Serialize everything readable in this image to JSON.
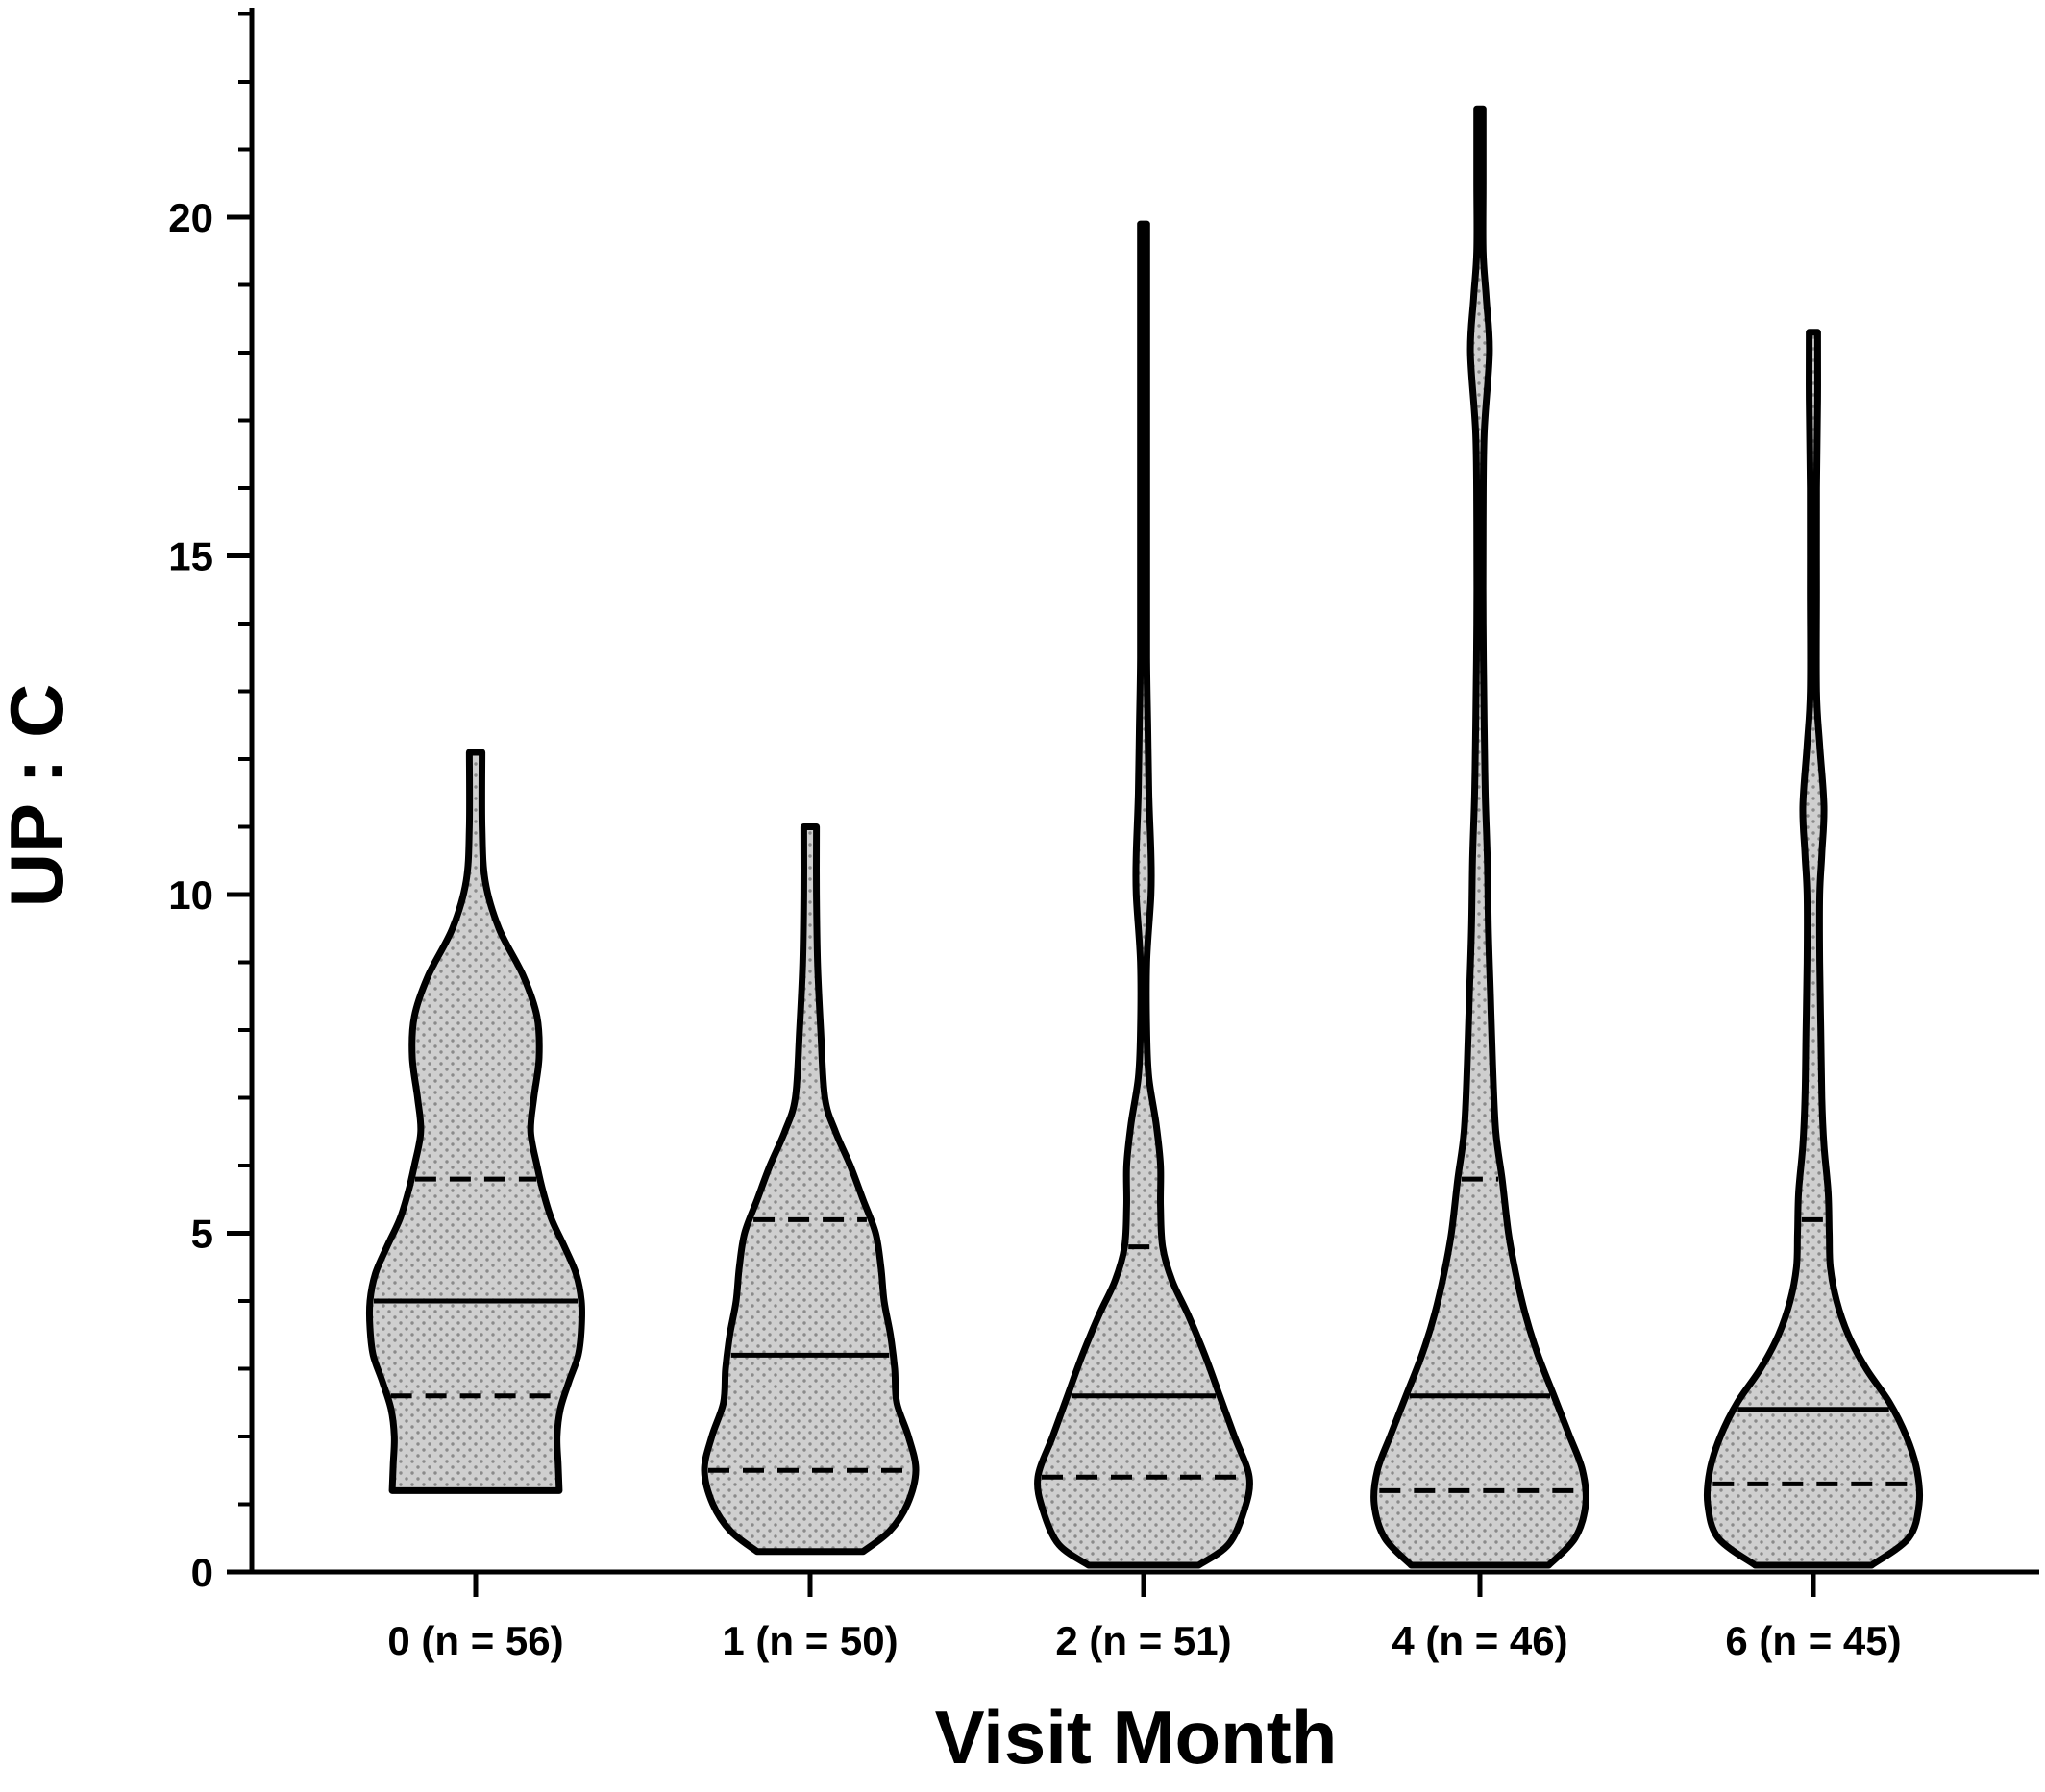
{
  "chart_data": {
    "type": "violin",
    "title": "",
    "xlabel": "Visit Month",
    "ylabel": "UP : C",
    "ylim": [
      0,
      23
    ],
    "yticks": [
      0,
      5,
      10,
      15,
      20
    ],
    "yminor_step": 1,
    "grid": false,
    "legend": "none",
    "fill_color": "#cfcfcf",
    "line_color": "#000000",
    "categories": [
      "0 (n = 56)",
      "1 (n = 50)",
      "2 (n = 51)",
      "4 (n = 46)",
      "6 (n = 45)"
    ],
    "series": [
      {
        "visit_month": 0,
        "n": 56,
        "min": 1.2,
        "max": 12.1,
        "q1": 2.6,
        "median": 4.0,
        "q3": 5.8,
        "density": [
          [
            1.2,
            0.79
          ],
          [
            1.6,
            0.78
          ],
          [
            2.0,
            0.77
          ],
          [
            2.4,
            0.8
          ],
          [
            2.8,
            0.88
          ],
          [
            3.2,
            0.97
          ],
          [
            3.6,
            1.0
          ],
          [
            4.0,
            1.0
          ],
          [
            4.4,
            0.95
          ],
          [
            4.8,
            0.84
          ],
          [
            5.2,
            0.72
          ],
          [
            5.6,
            0.64
          ],
          [
            6.0,
            0.58
          ],
          [
            6.5,
            0.52
          ],
          [
            7.0,
            0.55
          ],
          [
            7.6,
            0.6
          ],
          [
            8.2,
            0.58
          ],
          [
            8.8,
            0.45
          ],
          [
            9.5,
            0.22
          ],
          [
            10.2,
            0.09
          ],
          [
            11.0,
            0.06
          ],
          [
            12.1,
            0.06
          ]
        ]
      },
      {
        "visit_month": 1,
        "n": 50,
        "min": 0.3,
        "max": 11.0,
        "q1": 1.5,
        "median": 3.2,
        "q3": 5.2,
        "density": [
          [
            0.3,
            0.5
          ],
          [
            0.6,
            0.75
          ],
          [
            1.0,
            0.92
          ],
          [
            1.5,
            1.0
          ],
          [
            2.0,
            0.93
          ],
          [
            2.5,
            0.82
          ],
          [
            3.0,
            0.8
          ],
          [
            3.5,
            0.76
          ],
          [
            4.0,
            0.7
          ],
          [
            4.5,
            0.67
          ],
          [
            5.0,
            0.62
          ],
          [
            5.5,
            0.5
          ],
          [
            6.0,
            0.38
          ],
          [
            6.5,
            0.24
          ],
          [
            7.0,
            0.14
          ],
          [
            8.0,
            0.1
          ],
          [
            9.0,
            0.07
          ],
          [
            10.0,
            0.06
          ],
          [
            11.0,
            0.06
          ]
        ]
      },
      {
        "visit_month": 2,
        "n": 51,
        "min": 0.1,
        "max": 19.9,
        "q1": 1.4,
        "median": 2.6,
        "q3": 4.8,
        "density": [
          [
            0.1,
            0.52
          ],
          [
            0.4,
            0.8
          ],
          [
            0.9,
            0.95
          ],
          [
            1.4,
            1.0
          ],
          [
            2.0,
            0.86
          ],
          [
            2.6,
            0.72
          ],
          [
            3.2,
            0.58
          ],
          [
            3.8,
            0.42
          ],
          [
            4.3,
            0.27
          ],
          [
            4.8,
            0.18
          ],
          [
            5.4,
            0.16
          ],
          [
            6.0,
            0.16
          ],
          [
            6.6,
            0.12
          ],
          [
            7.3,
            0.05
          ],
          [
            8.0,
            0.03
          ],
          [
            9.0,
            0.03
          ],
          [
            10.0,
            0.07
          ],
          [
            10.6,
            0.07
          ],
          [
            11.5,
            0.05
          ],
          [
            12.5,
            0.04
          ],
          [
            13.5,
            0.03
          ],
          [
            15.0,
            0.03
          ],
          [
            17.0,
            0.03
          ],
          [
            19.0,
            0.03
          ],
          [
            19.9,
            0.03
          ]
        ]
      },
      {
        "visit_month": 4,
        "n": 46,
        "min": 0.1,
        "max": 21.6,
        "q1": 1.2,
        "median": 2.6,
        "q3": 5.8,
        "density": [
          [
            0.1,
            0.65
          ],
          [
            0.5,
            0.9
          ],
          [
            1.0,
            1.0
          ],
          [
            1.5,
            0.97
          ],
          [
            2.0,
            0.85
          ],
          [
            2.6,
            0.7
          ],
          [
            3.2,
            0.55
          ],
          [
            3.8,
            0.43
          ],
          [
            4.4,
            0.34
          ],
          [
            5.0,
            0.27
          ],
          [
            5.8,
            0.21
          ],
          [
            6.5,
            0.15
          ],
          [
            7.5,
            0.12
          ],
          [
            8.5,
            0.1
          ],
          [
            9.5,
            0.08
          ],
          [
            10.5,
            0.07
          ],
          [
            11.5,
            0.05
          ],
          [
            12.5,
            0.04
          ],
          [
            14.0,
            0.03
          ],
          [
            15.5,
            0.03
          ],
          [
            16.8,
            0.04
          ],
          [
            18.0,
            0.09
          ],
          [
            18.8,
            0.06
          ],
          [
            19.5,
            0.03
          ],
          [
            20.5,
            0.03
          ],
          [
            21.6,
            0.03
          ]
        ]
      },
      {
        "visit_month": 6,
        "n": 45,
        "min": 0.1,
        "max": 18.3,
        "q1": 1.3,
        "median": 2.4,
        "q3": 5.2,
        "density": [
          [
            0.1,
            0.55
          ],
          [
            0.5,
            0.9
          ],
          [
            1.0,
            1.0
          ],
          [
            1.5,
            0.98
          ],
          [
            2.0,
            0.88
          ],
          [
            2.5,
            0.72
          ],
          [
            3.0,
            0.5
          ],
          [
            3.5,
            0.33
          ],
          [
            4.0,
            0.22
          ],
          [
            4.5,
            0.16
          ],
          [
            5.0,
            0.15
          ],
          [
            5.6,
            0.14
          ],
          [
            6.3,
            0.1
          ],
          [
            7.0,
            0.08
          ],
          [
            8.0,
            0.07
          ],
          [
            9.0,
            0.06
          ],
          [
            10.0,
            0.06
          ],
          [
            10.6,
            0.08
          ],
          [
            11.3,
            0.1
          ],
          [
            12.2,
            0.06
          ],
          [
            13.0,
            0.03
          ],
          [
            14.5,
            0.03
          ],
          [
            16.0,
            0.03
          ],
          [
            17.3,
            0.04
          ],
          [
            18.3,
            0.04
          ]
        ]
      }
    ]
  }
}
